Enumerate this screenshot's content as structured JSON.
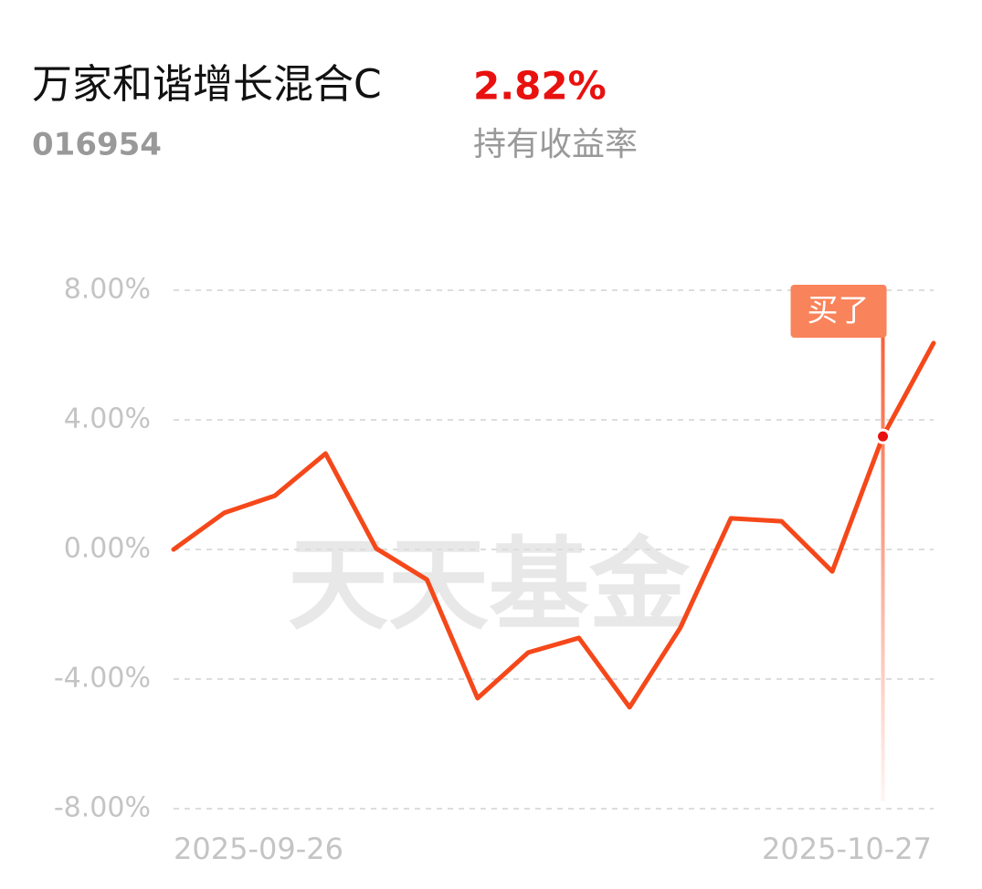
{
  "header": {
    "title": "万家和谐增长混合C",
    "code": "016954",
    "return_value": "2.82%",
    "return_label": "持有收益率"
  },
  "chart_data": {
    "type": "line",
    "categories": [
      "2025-09-26",
      null,
      null,
      null,
      null,
      null,
      null,
      null,
      null,
      null,
      null,
      null,
      null,
      null,
      null,
      "2025-10-27"
    ],
    "values": [
      0,
      1.13,
      1.66,
      2.96,
      0.03,
      -0.93,
      -4.59,
      -3.18,
      -2.73,
      -4.87,
      -2.42,
      0.96,
      0.87,
      -0.68,
      3.49,
      6.37
    ],
    "color": "#f5481a",
    "ylim": [
      -8,
      8
    ],
    "yticks": [
      {
        "value": -8,
        "label": "-8.00%"
      },
      {
        "value": -4,
        "label": "-4.00%"
      },
      {
        "value": 0,
        "label": "0.00%"
      },
      {
        "value": 4,
        "label": "4.00%"
      },
      {
        "value": 8,
        "label": "8.00%"
      }
    ],
    "grid": true,
    "annotation": {
      "text": "买了",
      "at": 14
    },
    "watermark": "天天基金"
  }
}
